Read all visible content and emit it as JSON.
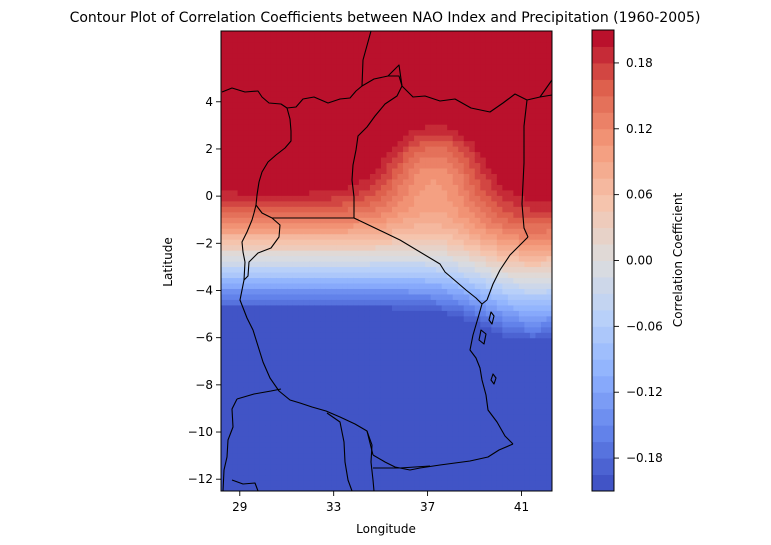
{
  "chart_data": {
    "type": "contour",
    "title": "Contour Plot of Correlation Coefficients between NAO Index and Precipitation (1960-2005)",
    "xlabel": "Longitude",
    "ylabel": "Latitude",
    "xlim": [
      28.2,
      42.3
    ],
    "ylim": [
      -12.5,
      7.0
    ],
    "x_ticks": [
      29,
      33,
      37,
      41
    ],
    "x_tick_labels": [
      "29",
      "33",
      "37",
      "41"
    ],
    "y_ticks": [
      4,
      2,
      0,
      -2,
      -4,
      -6,
      -8,
      -10,
      -12
    ],
    "y_tick_labels": [
      "4",
      "2",
      "0",
      "−2",
      "−4",
      "−6",
      "−8",
      "−10",
      "−12"
    ],
    "colorbar": {
      "label": "Correlation Coefficient",
      "range": [
        -0.21,
        0.21
      ],
      "ticks": [
        0.18,
        0.12,
        0.06,
        0.0,
        -0.06,
        -0.12,
        -0.18
      ],
      "tick_labels": [
        "0.18",
        "0.12",
        "0.06",
        "0.00",
        "−0.06",
        "−0.12",
        "−0.18"
      ],
      "colormap": "coolwarm",
      "levels": [
        -0.21,
        -0.195,
        -0.18,
        -0.165,
        -0.15,
        -0.135,
        -0.12,
        -0.105,
        -0.09,
        -0.075,
        -0.06,
        -0.045,
        -0.03,
        -0.015,
        0.0,
        0.015,
        0.03,
        0.045,
        0.06,
        0.075,
        0.09,
        0.105,
        0.12,
        0.135,
        0.15,
        0.165,
        0.18,
        0.195,
        0.21
      ]
    },
    "grid": false
  }
}
